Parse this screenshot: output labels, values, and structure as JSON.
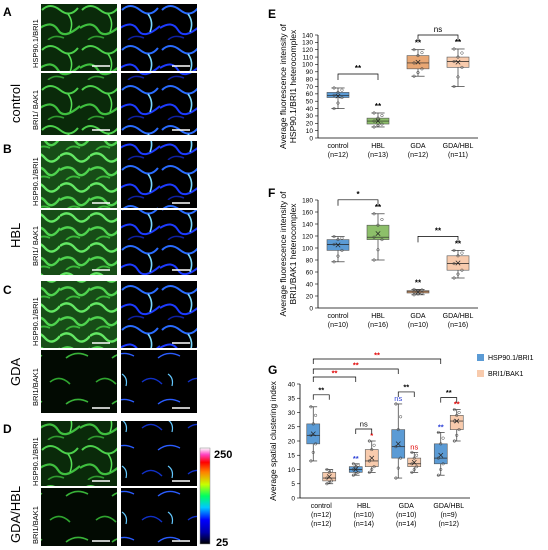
{
  "panels": {
    "A": "A",
    "B": "B",
    "C": "C",
    "D": "D",
    "E": "E",
    "F": "F",
    "G": "G"
  },
  "left": {
    "groups": [
      {
        "label": "control",
        "rows": [
          "HSP90.1/BRI1",
          "BRI1/ BAK1"
        ]
      },
      {
        "label": "HBL",
        "rows": [
          "HSP90.1/BRI1",
          "BRI1/ BAK1"
        ]
      },
      {
        "label": "GDA",
        "rows": [
          "HSP90.1/BRI1",
          "BRI1/BAK1"
        ]
      },
      {
        "label": "GDA/HBL",
        "rows": [
          "HSP90.1/BRI1",
          "BRI1/BAK1"
        ]
      }
    ],
    "colorbar": {
      "max": "250",
      "min": "25"
    }
  },
  "colors": {
    "blue_box": "#5b9bd5",
    "blue_box_light": "#9dc3e6",
    "green_box": "#8dbf6a",
    "orange_box": "#e8a774",
    "peach_box": "#f8cbad",
    "peach_box_light": "#fbe3d4",
    "sig_red": "#e00000",
    "sig_blue": "#2b3fd6",
    "sig_black": "#000000"
  },
  "chart_data": [
    {
      "panel": "E",
      "type": "box",
      "ylabel": "Average fluorescence intensity of HSP90.1/BRI1 heterocomplex",
      "ylim": [
        0,
        140
      ],
      "yticks": [
        0,
        10,
        20,
        30,
        40,
        50,
        60,
        70,
        80,
        90,
        100,
        110,
        120,
        130,
        140
      ],
      "categories": [
        {
          "name": "control",
          "n": "(n=12)"
        },
        {
          "name": "HBL",
          "n": "(n=13)"
        },
        {
          "name": "GDA",
          "n": "(n=12)"
        },
        {
          "name": "GDA/HBL",
          "n": "(n=11)"
        }
      ],
      "boxes": [
        {
          "min": 40,
          "q1": 55,
          "median": 58,
          "q3": 62,
          "max": 68,
          "mean": 57,
          "color": "blue",
          "sig": ""
        },
        {
          "min": 15,
          "q1": 19,
          "median": 23,
          "q3": 27,
          "max": 34,
          "mean": 23,
          "color": "green",
          "sig": "**"
        },
        {
          "min": 84,
          "q1": 94,
          "median": 102,
          "q3": 112,
          "max": 120,
          "mean": 103,
          "color": "orange",
          "sig": "**"
        },
        {
          "min": 70,
          "q1": 96,
          "median": 104,
          "q3": 110,
          "max": 121,
          "mean": 103,
          "color": "peach",
          "sig": "**"
        }
      ],
      "brackets": [
        {
          "from": 0,
          "to": 1,
          "label": "**"
        },
        {
          "from": 2,
          "to": 3,
          "label": "ns"
        }
      ]
    },
    {
      "panel": "F",
      "type": "box",
      "ylabel": "Average fluorescence intensity of BRI1/BAK1 heterocomplex",
      "ylim": [
        0,
        180
      ],
      "yticks": [
        0,
        20,
        40,
        60,
        80,
        100,
        120,
        140,
        160,
        180
      ],
      "categories": [
        {
          "name": "control",
          "n": "(n=10)"
        },
        {
          "name": "HBL",
          "n": "(n=16)"
        },
        {
          "name": "GDA",
          "n": "(n=10)"
        },
        {
          "name": "GDA/HBL",
          "n": "(n=16)"
        }
      ],
      "boxes": [
        {
          "min": 77,
          "q1": 96,
          "median": 106,
          "q3": 114,
          "max": 119,
          "mean": 105,
          "color": "blue",
          "sig": ""
        },
        {
          "min": 80,
          "q1": 114,
          "median": 118,
          "q3": 138,
          "max": 157,
          "mean": 124,
          "color": "green",
          "sig": "**"
        },
        {
          "min": 22,
          "q1": 25,
          "median": 27,
          "q3": 29,
          "max": 31,
          "mean": 27,
          "color": "orange",
          "sig": "**"
        },
        {
          "min": 50,
          "q1": 63,
          "median": 74,
          "q3": 87,
          "max": 96,
          "mean": 75,
          "color": "peach",
          "sig": "**"
        }
      ],
      "brackets": [
        {
          "from": 0,
          "to": 1,
          "label": "*"
        },
        {
          "from": 2,
          "to": 3,
          "label": "**"
        }
      ]
    },
    {
      "panel": "G",
      "type": "box",
      "ylabel": "Average spatial clustering index",
      "ylim": [
        0,
        40
      ],
      "yticks": [
        0,
        5,
        10,
        15,
        20,
        25,
        30,
        35,
        40
      ],
      "categories": [
        {
          "name": "control",
          "n": "(n=12)",
          "n2": "(n=12)"
        },
        {
          "name": "HBL",
          "n": "(n=10)",
          "n2": "(n=14)"
        },
        {
          "name": "GDA",
          "n": "(n=10)",
          "n2": "(n=14)"
        },
        {
          "name": "GDA/HBL",
          "n": "(n=9)",
          "n2": "(n=12)"
        }
      ],
      "legend": [
        {
          "name": "HSP90.1/BRI1",
          "color": "blue"
        },
        {
          "name": "BRI1/BAK1",
          "color": "peach"
        }
      ],
      "series": [
        {
          "name": "HSP90.1/BRI1",
          "boxes": [
            {
              "min": 13,
              "q1": 19,
              "median": 22,
              "q3": 26,
              "max": 32,
              "mean": 22.5,
              "sig": "",
              "sig_color": ""
            },
            {
              "min": 8,
              "q1": 9,
              "median": 10,
              "q3": 11,
              "max": 12,
              "mean": 10,
              "sig": "**",
              "sig_color": "blue"
            },
            {
              "min": 7,
              "q1": 14,
              "median": 18,
              "q3": 24,
              "max": 33,
              "mean": 19,
              "sig": "ns",
              "sig_color": "blue"
            },
            {
              "min": 8,
              "q1": 12,
              "median": 14,
              "q3": 19,
              "max": 23,
              "mean": 15,
              "sig": "**",
              "sig_color": "blue"
            }
          ]
        },
        {
          "name": "BRI1/BAK1",
          "boxes": [
            {
              "min": 5,
              "q1": 6,
              "median": 7,
              "q3": 9,
              "max": 10,
              "mean": 7.5,
              "sig": "",
              "sig_color": ""
            },
            {
              "min": 9,
              "q1": 11,
              "median": 13,
              "q3": 17,
              "max": 20,
              "mean": 14,
              "sig": "*",
              "sig_color": "red"
            },
            {
              "min": 9,
              "q1": 11,
              "median": 12,
              "q3": 14,
              "max": 16,
              "mean": 12.5,
              "sig": "ns",
              "sig_color": "red"
            },
            {
              "min": 20,
              "q1": 24,
              "median": 27,
              "q3": 29,
              "max": 31,
              "mean": 27,
              "sig": "**",
              "sig_color": "red"
            }
          ]
        }
      ],
      "brackets_top": [
        {
          "from": 0,
          "to": 3,
          "label": "**",
          "color": "red"
        },
        {
          "from": 0,
          "to": 2,
          "label": "**",
          "color": "red"
        },
        {
          "from": 0,
          "to": 1,
          "label": "**",
          "color": "red"
        }
      ],
      "brackets_pair": [
        {
          "group": 0,
          "label": "**"
        },
        {
          "group": 1,
          "label": "ns"
        },
        {
          "group": 2,
          "label": "**"
        },
        {
          "group": 3,
          "label": "**"
        }
      ]
    }
  ]
}
